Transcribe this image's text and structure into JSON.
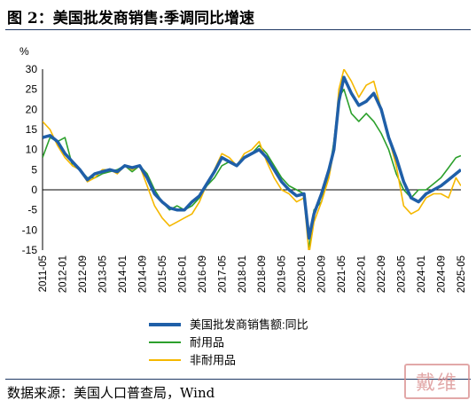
{
  "header": {
    "title": "图 2：美国批发商销售:季调同比增速"
  },
  "footer": {
    "source": "数据来源：美国人口普查局，Wind"
  },
  "watermark": {
    "text": "戴维"
  },
  "chart_data": {
    "type": "line",
    "title": "",
    "ylabel": "%",
    "ylim": [
      -15,
      30
    ],
    "yticks": [
      -15,
      -10,
      -5,
      0,
      5,
      10,
      15,
      20,
      25,
      30
    ],
    "x_range": [
      "2011-05",
      "2025-05"
    ],
    "xtick_labels": [
      "2011-05",
      "2012-01",
      "2012-09",
      "2013-05",
      "2014-01",
      "2014-09",
      "2015-05",
      "2016-01",
      "2016-09",
      "2017-05",
      "2018-01",
      "2018-09",
      "2019-05",
      "2020-01",
      "2020-09",
      "2021-05",
      "2022-01",
      "2022-09",
      "2023-05",
      "2024-01",
      "2024-09",
      "2025-05"
    ],
    "grid": false,
    "legend_position": "bottom",
    "series": [
      {
        "name": "美国批发商销售额:同比",
        "color": "#1f5fa8",
        "x": [
          "2011-05",
          "2011-08",
          "2011-11",
          "2012-02",
          "2012-05",
          "2012-08",
          "2012-11",
          "2013-02",
          "2013-05",
          "2013-08",
          "2013-11",
          "2014-02",
          "2014-05",
          "2014-08",
          "2014-11",
          "2015-02",
          "2015-05",
          "2015-08",
          "2015-11",
          "2016-02",
          "2016-05",
          "2016-08",
          "2016-11",
          "2017-02",
          "2017-05",
          "2017-08",
          "2017-11",
          "2018-02",
          "2018-05",
          "2018-08",
          "2018-11",
          "2019-02",
          "2019-05",
          "2019-08",
          "2019-11",
          "2020-02",
          "2020-04",
          "2020-06",
          "2020-09",
          "2020-12",
          "2021-02",
          "2021-04",
          "2021-06",
          "2021-09",
          "2021-12",
          "2022-03",
          "2022-06",
          "2022-09",
          "2022-12",
          "2023-03",
          "2023-06",
          "2023-09",
          "2023-12",
          "2024-03",
          "2024-06",
          "2024-09",
          "2024-12",
          "2025-03",
          "2025-05"
        ],
        "values": [
          13,
          13.5,
          12,
          9,
          7,
          5,
          2.5,
          4,
          4.5,
          5,
          4.5,
          6,
          5.5,
          6,
          3,
          -1,
          -3,
          -4.5,
          -5,
          -5,
          -3,
          -1.5,
          1.5,
          4.5,
          8,
          7,
          6,
          8,
          9,
          10,
          8,
          5,
          2,
          0,
          -1.5,
          -1,
          -12,
          -6,
          -1,
          5,
          10,
          22,
          28,
          24,
          21,
          22,
          24,
          20,
          13,
          8,
          2,
          -2,
          -3,
          -1,
          0,
          1,
          2.5,
          4,
          5
        ]
      },
      {
        "name": "耐用品",
        "color": "#2ca02c",
        "x": [
          "2011-05",
          "2011-08",
          "2011-11",
          "2012-02",
          "2012-05",
          "2012-08",
          "2012-11",
          "2013-02",
          "2013-05",
          "2013-08",
          "2013-11",
          "2014-02",
          "2014-05",
          "2014-08",
          "2014-11",
          "2015-02",
          "2015-05",
          "2015-08",
          "2015-11",
          "2016-02",
          "2016-05",
          "2016-08",
          "2016-11",
          "2017-02",
          "2017-05",
          "2017-08",
          "2017-11",
          "2018-02",
          "2018-05",
          "2018-08",
          "2018-11",
          "2019-02",
          "2019-05",
          "2019-08",
          "2019-11",
          "2020-02",
          "2020-04",
          "2020-06",
          "2020-09",
          "2020-12",
          "2021-02",
          "2021-04",
          "2021-06",
          "2021-09",
          "2021-12",
          "2022-03",
          "2022-06",
          "2022-09",
          "2022-12",
          "2023-03",
          "2023-06",
          "2023-09",
          "2023-12",
          "2024-03",
          "2024-06",
          "2024-09",
          "2024-12",
          "2025-03",
          "2025-05"
        ],
        "values": [
          8,
          13,
          12,
          13,
          6,
          5,
          3,
          3,
          4,
          4.5,
          5,
          6,
          4.5,
          6,
          4,
          0,
          -3,
          -5,
          -4,
          -5,
          -4,
          -2,
          1,
          3,
          6,
          7,
          6,
          8,
          9,
          11,
          9,
          6,
          3,
          1,
          0,
          -1,
          -15,
          -5,
          -3,
          4,
          12,
          23,
          25,
          19,
          17,
          19,
          17,
          14,
          10,
          4,
          0,
          -2,
          0,
          0,
          1.5,
          3,
          5.5,
          8,
          8.5
        ]
      },
      {
        "name": "非耐用品",
        "color": "#f5b800",
        "x": [
          "2011-05",
          "2011-08",
          "2011-11",
          "2012-02",
          "2012-05",
          "2012-08",
          "2012-11",
          "2013-02",
          "2013-05",
          "2013-08",
          "2013-11",
          "2014-02",
          "2014-05",
          "2014-08",
          "2014-11",
          "2015-02",
          "2015-05",
          "2015-08",
          "2015-11",
          "2016-02",
          "2016-05",
          "2016-08",
          "2016-11",
          "2017-02",
          "2017-05",
          "2017-08",
          "2017-11",
          "2018-02",
          "2018-05",
          "2018-08",
          "2018-11",
          "2019-02",
          "2019-05",
          "2019-08",
          "2019-11",
          "2020-02",
          "2020-04",
          "2020-06",
          "2020-09",
          "2020-12",
          "2021-02",
          "2021-04",
          "2021-06",
          "2021-09",
          "2021-12",
          "2022-03",
          "2022-06",
          "2022-09",
          "2022-12",
          "2023-03",
          "2023-06",
          "2023-09",
          "2023-12",
          "2024-03",
          "2024-06",
          "2024-09",
          "2024-12",
          "2025-03",
          "2025-05"
        ],
        "values": [
          17,
          15,
          11,
          8,
          6,
          5,
          2,
          3,
          5,
          5,
          4,
          6,
          5,
          6,
          1,
          -4,
          -7,
          -9,
          -8,
          -7,
          -6,
          -3,
          1.5,
          5,
          9,
          8,
          6,
          9,
          10,
          12,
          7,
          3,
          0,
          -1,
          -3,
          -2,
          -16,
          -8,
          -3,
          3,
          10,
          25,
          30,
          27,
          23,
          26,
          27,
          20,
          13,
          6,
          -4,
          -6,
          -5,
          -2,
          -1,
          -1,
          -2,
          3,
          1
        ]
      }
    ]
  }
}
